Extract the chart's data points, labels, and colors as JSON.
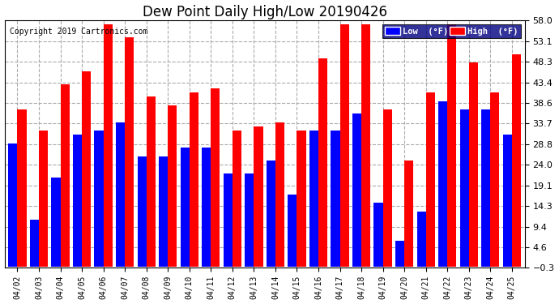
{
  "title": "Dew Point Daily High/Low 20190426",
  "copyright": "Copyright 2019 Cartronics.com",
  "dates": [
    "04/02",
    "04/03",
    "04/04",
    "04/05",
    "04/06",
    "04/07",
    "04/08",
    "04/09",
    "04/10",
    "04/11",
    "04/12",
    "04/13",
    "04/14",
    "04/15",
    "04/16",
    "04/17",
    "04/18",
    "04/19",
    "04/20",
    "04/21",
    "04/22",
    "04/23",
    "04/24",
    "04/25"
  ],
  "low": [
    29,
    11,
    21,
    31,
    32,
    34,
    26,
    26,
    28,
    28,
    22,
    22,
    25,
    17,
    32,
    32,
    36,
    15,
    6,
    13,
    39,
    37,
    37,
    31
  ],
  "high": [
    37,
    32,
    43,
    46,
    57,
    54,
    40,
    38,
    41,
    42,
    32,
    33,
    34,
    32,
    49,
    57,
    57,
    37,
    25,
    41,
    57,
    48,
    41,
    50
  ],
  "low_color": "#0000ff",
  "high_color": "#ff0000",
  "bg_color": "#ffffff",
  "grid_color": "#aaaaaa",
  "ylim_min": -0.3,
  "ylim_max": 58.0,
  "yticks": [
    -0.3,
    4.6,
    9.4,
    14.3,
    19.1,
    24.0,
    28.8,
    33.7,
    38.6,
    43.4,
    48.3,
    53.1,
    58.0
  ],
  "legend_low_label": "Low  (°F)",
  "legend_high_label": "High  (°F)",
  "title_fontsize": 12,
  "copyright_fontsize": 7
}
